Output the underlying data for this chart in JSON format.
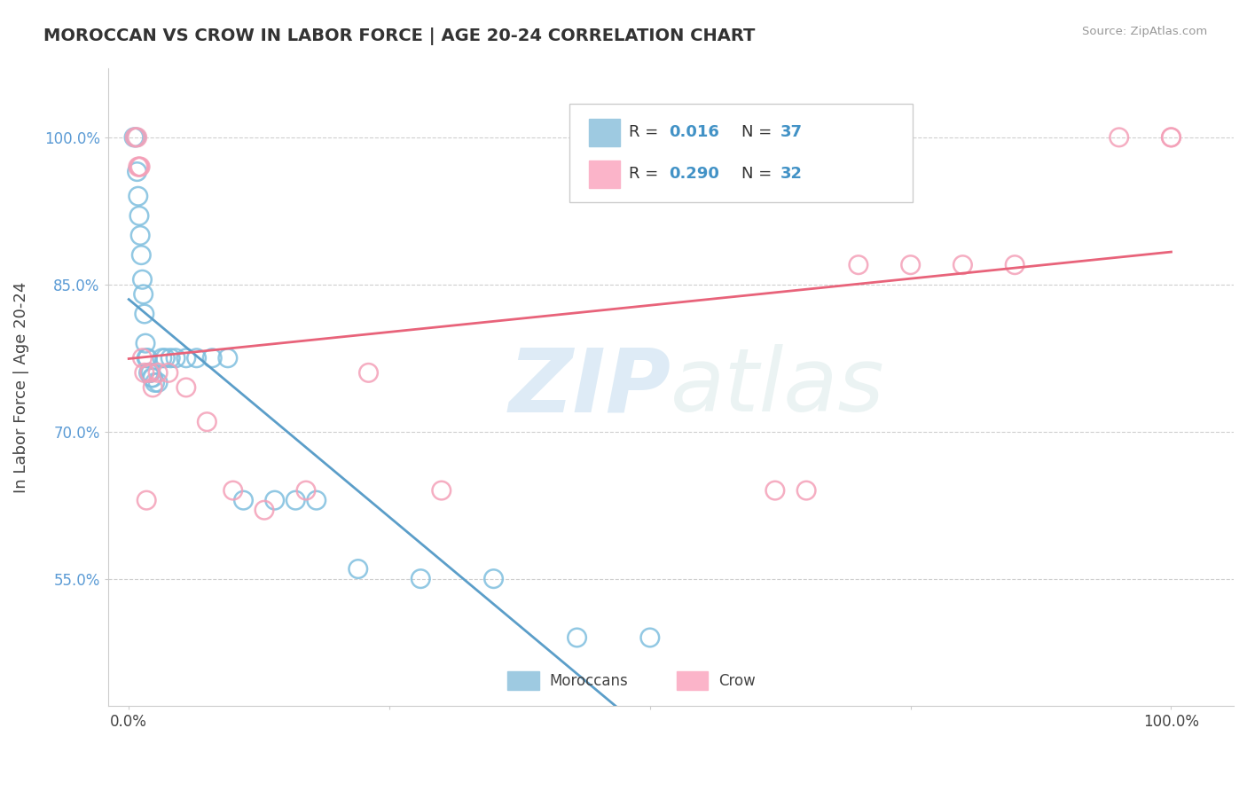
{
  "title": "MOROCCAN VS CROW IN LABOR FORCE | AGE 20-24 CORRELATION CHART",
  "source": "Source: ZipAtlas.com",
  "ylabel": "In Labor Force | Age 20-24",
  "blue_color": "#7fbfdf",
  "pink_color": "#f4a0b8",
  "blue_line_color": "#5b9ec9",
  "pink_line_color": "#e8637a",
  "watermark_color": "#ddeef7",
  "y_ticks": [
    0.55,
    0.7,
    0.85,
    1.0
  ],
  "y_tick_labels": [
    "55.0%",
    "70.0%",
    "85.0%",
    "100.0%"
  ],
  "moroccan_x": [
    0.005,
    0.007,
    0.008,
    0.009,
    0.01,
    0.011,
    0.012,
    0.013,
    0.014,
    0.015,
    0.016,
    0.017,
    0.018,
    0.019,
    0.02,
    0.021,
    0.022,
    0.023,
    0.025,
    0.028,
    0.032,
    0.035,
    0.04,
    0.045,
    0.055,
    0.065,
    0.08,
    0.095,
    0.11,
    0.14,
    0.16,
    0.18,
    0.22,
    0.28,
    0.35,
    0.43,
    0.5
  ],
  "moroccan_y": [
    1.0,
    1.0,
    0.965,
    0.94,
    0.92,
    0.9,
    0.88,
    0.855,
    0.84,
    0.82,
    0.79,
    0.775,
    0.775,
    0.76,
    0.76,
    0.76,
    0.755,
    0.755,
    0.75,
    0.75,
    0.775,
    0.775,
    0.775,
    0.775,
    0.775,
    0.775,
    0.775,
    0.775,
    0.63,
    0.63,
    0.63,
    0.63,
    0.56,
    0.55,
    0.55,
    0.49,
    0.49
  ],
  "crow_x": [
    0.006,
    0.008,
    0.009,
    0.01,
    0.011,
    0.013,
    0.015,
    0.017,
    0.02,
    0.023,
    0.028,
    0.038,
    0.055,
    0.075,
    0.1,
    0.13,
    0.17,
    0.23,
    0.3,
    0.62,
    0.65,
    0.7,
    0.75,
    0.8,
    0.85,
    0.95,
    1.0,
    1.0
  ],
  "crow_y": [
    1.0,
    1.0,
    0.97,
    0.97,
    0.97,
    0.775,
    0.76,
    0.63,
    0.76,
    0.745,
    0.76,
    0.76,
    0.745,
    0.71,
    0.64,
    0.62,
    0.64,
    0.76,
    0.64,
    0.64,
    0.64,
    0.87,
    0.87,
    0.87,
    0.87,
    1.0,
    1.0,
    1.0
  ]
}
